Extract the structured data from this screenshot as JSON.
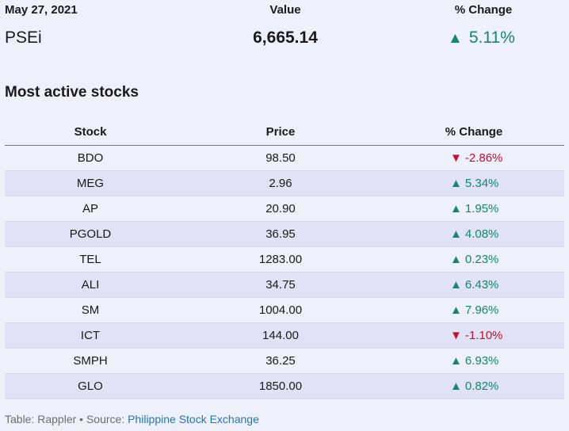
{
  "index": {
    "header": {
      "date": "May 27, 2021",
      "value_label": "Value",
      "change_label": "% Change"
    },
    "name": "PSEi",
    "value": "6,665.14",
    "change": "5.11%",
    "direction": "up"
  },
  "section_title": "Most active stocks",
  "table": {
    "columns": [
      "Stock",
      "Price",
      "% Change"
    ],
    "rows": [
      {
        "stock": "BDO",
        "price": "98.50",
        "change": "-2.86%",
        "direction": "down"
      },
      {
        "stock": "MEG",
        "price": "2.96",
        "change": "5.34%",
        "direction": "up"
      },
      {
        "stock": "AP",
        "price": "20.90",
        "change": "1.95%",
        "direction": "up"
      },
      {
        "stock": "PGOLD",
        "price": "36.95",
        "change": "4.08%",
        "direction": "up"
      },
      {
        "stock": "TEL",
        "price": "1283.00",
        "change": "0.23%",
        "direction": "up"
      },
      {
        "stock": "ALI",
        "price": "34.75",
        "change": "6.43%",
        "direction": "up"
      },
      {
        "stock": "SM",
        "price": "1004.00",
        "change": "7.96%",
        "direction": "up"
      },
      {
        "stock": "ICT",
        "price": "144.00",
        "change": "-1.10%",
        "direction": "down"
      },
      {
        "stock": "SMPH",
        "price": "36.25",
        "change": "6.93%",
        "direction": "up"
      },
      {
        "stock": "GLO",
        "price": "1850.00",
        "change": "0.82%",
        "direction": "up"
      }
    ]
  },
  "footer": {
    "prefix": "Table: Rappler • Source: ",
    "source_link": "Philippine Stock Exchange"
  },
  "colors": {
    "up": "#0f8a6b",
    "down": "#c8102e",
    "header_rule": "#d9542f",
    "link": "#1f77b4"
  }
}
